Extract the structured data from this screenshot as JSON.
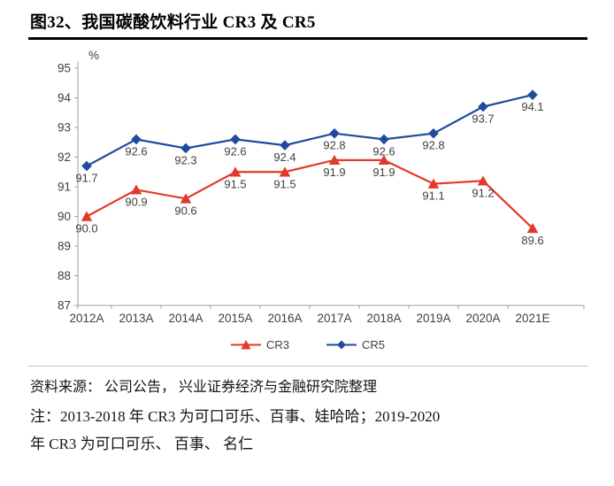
{
  "title": "图32、我国碳酸饮料行业 CR3 及 CR5",
  "chart_data": {
    "type": "line",
    "title": "我国碳酸饮料行业 CR3 及 CR5",
    "unit_label": "%",
    "categories": [
      "2012A",
      "2013A",
      "2014A",
      "2015A",
      "2016A",
      "2017A",
      "2018A",
      "2019A",
      "2020A",
      "2021E"
    ],
    "series": [
      {
        "name": "CR3",
        "marker": "triangle",
        "color": "#e23a2a",
        "values": [
          90.0,
          90.9,
          90.6,
          91.5,
          91.5,
          91.9,
          91.9,
          91.1,
          91.2,
          89.6
        ]
      },
      {
        "name": "CR5",
        "marker": "diamond",
        "color": "#1f4a9f",
        "values": [
          91.7,
          92.6,
          92.3,
          92.6,
          92.4,
          92.8,
          92.6,
          92.8,
          93.7,
          94.1
        ]
      }
    ],
    "ylim": [
      87,
      95
    ],
    "ytick_step": 1,
    "grid": false,
    "data_labels": true,
    "label_color": "#404040",
    "axis_color": "#a0a0a0",
    "legend_position": "bottom"
  },
  "footer": {
    "source": "资料来源： 公司公告， 兴业证券经济与金融研究院整理",
    "note_line1": "注：2013-2018 年 CR3 为可口可乐、百事、娃哈哈；2019-2020",
    "note_line2": "年 CR3 为可口可乐、 百事、 名仁"
  }
}
